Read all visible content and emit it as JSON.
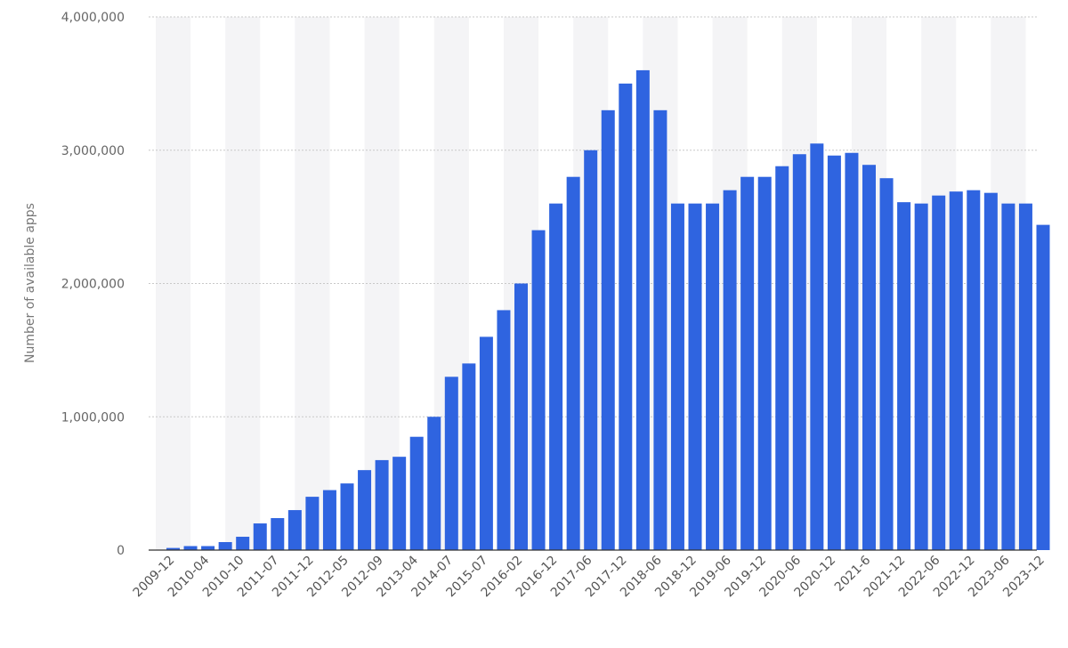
{
  "chart_data": {
    "type": "bar",
    "ylabel": "Number of available apps",
    "xlabel": "",
    "ylim": [
      0,
      4000000
    ],
    "yticks": [
      0,
      1000000,
      2000000,
      3000000,
      4000000
    ],
    "ytick_labels": [
      "0",
      "1,000,000",
      "2,000,000",
      "3,000,000",
      "4,000,000"
    ],
    "x_tick_labels": [
      "2009-12",
      "2010-04",
      "2010-10",
      "2011-07",
      "2011-12",
      "2012-05",
      "2012-09",
      "2013-04",
      "2014-07",
      "2015-07",
      "2016-02",
      "2016-12",
      "2017-06",
      "2017-12",
      "2018-06",
      "2018-12",
      "2019-06",
      "2019-12",
      "2020-06",
      "2020-12",
      "2021-6",
      "2021-12",
      "2022-06",
      "2022-12",
      "2023-06",
      "2023-12"
    ],
    "grid": true,
    "bar_color": "#2f64e0",
    "values": [
      16000,
      30000,
      30000,
      60000,
      100000,
      200000,
      240000,
      300000,
      400000,
      450000,
      500000,
      600000,
      675000,
      700000,
      850000,
      1000000,
      1300000,
      1400000,
      1600000,
      1800000,
      2000000,
      2400000,
      2600000,
      2800000,
      3000000,
      3300000,
      3500000,
      3600000,
      3300000,
      2600000,
      2600000,
      2600000,
      2700000,
      2800000,
      2800000,
      2880000,
      2970000,
      3050000,
      2960000,
      2980000,
      2890000,
      2790000,
      2610000,
      2600000,
      2660000,
      2690000,
      2700000,
      2680000,
      2600000,
      2600000,
      2440000
    ]
  }
}
